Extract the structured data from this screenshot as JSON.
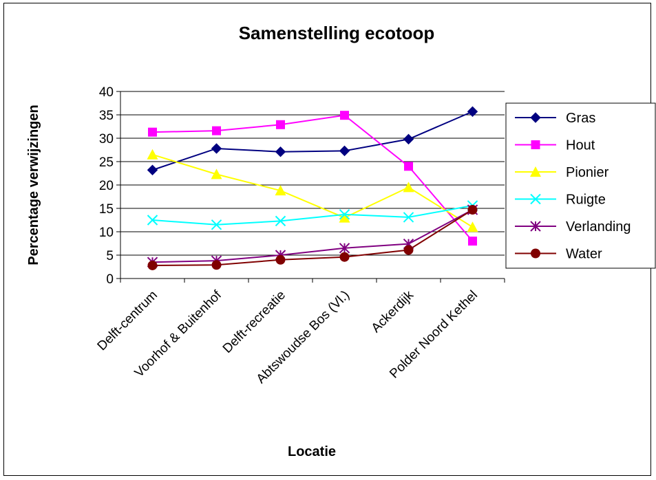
{
  "chart_data": {
    "type": "line",
    "title": "Samenstelling ecotoop",
    "xlabel": "Locatie",
    "ylabel": "Percentage verwijzingen",
    "ylim": [
      0,
      40
    ],
    "yticks": [
      0,
      5,
      10,
      15,
      20,
      25,
      30,
      35,
      40
    ],
    "grid": "horizontal",
    "legend_position": "right",
    "categories": [
      "Delft-centrum",
      "Voorhof & Buitenhof",
      "Delft-recreatie",
      "Abtswoudse Bos (Vl.)",
      "Ackerdijk",
      "Polder Noord Kethel"
    ],
    "series": [
      {
        "name": "Gras",
        "color": "#000080",
        "marker": "diamond",
        "values": [
          23.2,
          27.8,
          27.1,
          27.3,
          29.8,
          35.7
        ]
      },
      {
        "name": "Hout",
        "color": "#ff00ff",
        "marker": "square",
        "values": [
          31.3,
          31.6,
          32.9,
          34.9,
          24.0,
          8.0
        ]
      },
      {
        "name": "Pionier",
        "color": "#ffff00",
        "marker": "triangle",
        "values": [
          26.5,
          22.3,
          18.8,
          13.0,
          19.5,
          11.0
        ]
      },
      {
        "name": "Ruigte",
        "color": "#00ffff",
        "marker": "x",
        "values": [
          12.5,
          11.5,
          12.3,
          13.7,
          13.1,
          15.6
        ]
      },
      {
        "name": "Verlanding",
        "color": "#800080",
        "marker": "star",
        "values": [
          3.5,
          3.8,
          5.0,
          6.5,
          7.4,
          14.7
        ]
      },
      {
        "name": "Water",
        "color": "#800000",
        "marker": "circle",
        "values": [
          2.8,
          2.9,
          4.0,
          4.6,
          6.1,
          14.7
        ]
      }
    ]
  }
}
